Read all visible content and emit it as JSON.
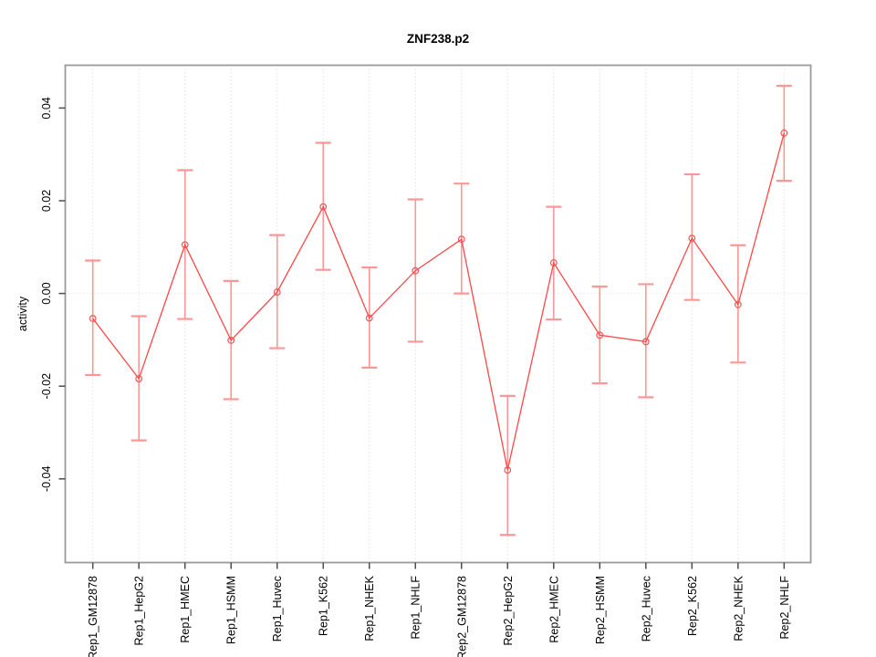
{
  "title": "ZNF238.p2",
  "colors": {
    "line": "#ff4747",
    "point": "#f25555",
    "error_bar": "#fc9797",
    "grid": "#d6d6d6",
    "zero_line": "#dddddd",
    "box": "#9a9a9a",
    "tick": "#4d4d4d",
    "text": "#000000",
    "background": "#ffffff"
  },
  "chart_data": {
    "type": "line",
    "title": "ZNF238.p2",
    "xlabel": "",
    "ylabel": "activity",
    "legend": "none",
    "grid": "vertical-dotted",
    "zero_reference_line": true,
    "ylim": [
      -0.0585,
      0.0492
    ],
    "yticks": [
      0.04,
      0.02,
      0.0,
      -0.02,
      -0.04
    ],
    "ytick_labels": [
      "0.04",
      "0.02",
      "0.00",
      "-0.02",
      "-0.04"
    ],
    "categories": [
      "Rep1_GM12878",
      "Rep1_HepG2",
      "Rep1_HMEC",
      "Rep1_HSMM",
      "Rep1_Huvec",
      "Rep1_K562",
      "Rep1_NHEK",
      "Rep1_NHLF",
      "Rep2_GM12878",
      "Rep2_HepG2",
      "Rep2_HMEC",
      "Rep2_HSMM",
      "Rep2_Huvec",
      "Rep2_K562",
      "Rep2_NHEK",
      "Rep2_NHLF"
    ],
    "series": [
      {
        "name": "activity",
        "marker": "open-circle",
        "values": [
          -0.0054,
          -0.0184,
          0.0105,
          -0.0101,
          0.0003,
          0.0187,
          -0.0053,
          0.0049,
          0.0117,
          -0.0381,
          0.0066,
          -0.009,
          -0.0104,
          0.0119,
          -0.0024,
          0.0346
        ],
        "error_high": [
          0.0071,
          -0.0049,
          0.0266,
          0.0027,
          0.0126,
          0.0325,
          0.0056,
          0.0203,
          0.0237,
          -0.0221,
          0.0187,
          0.0015,
          0.002,
          0.0257,
          0.0104,
          0.0448
        ],
        "error_low": [
          -0.0176,
          -0.0317,
          -0.0055,
          -0.0228,
          -0.0118,
          0.0051,
          -0.016,
          -0.0104,
          0.0,
          -0.0521,
          -0.0056,
          -0.0194,
          -0.0224,
          -0.0014,
          -0.0149,
          0.0243
        ]
      }
    ]
  }
}
